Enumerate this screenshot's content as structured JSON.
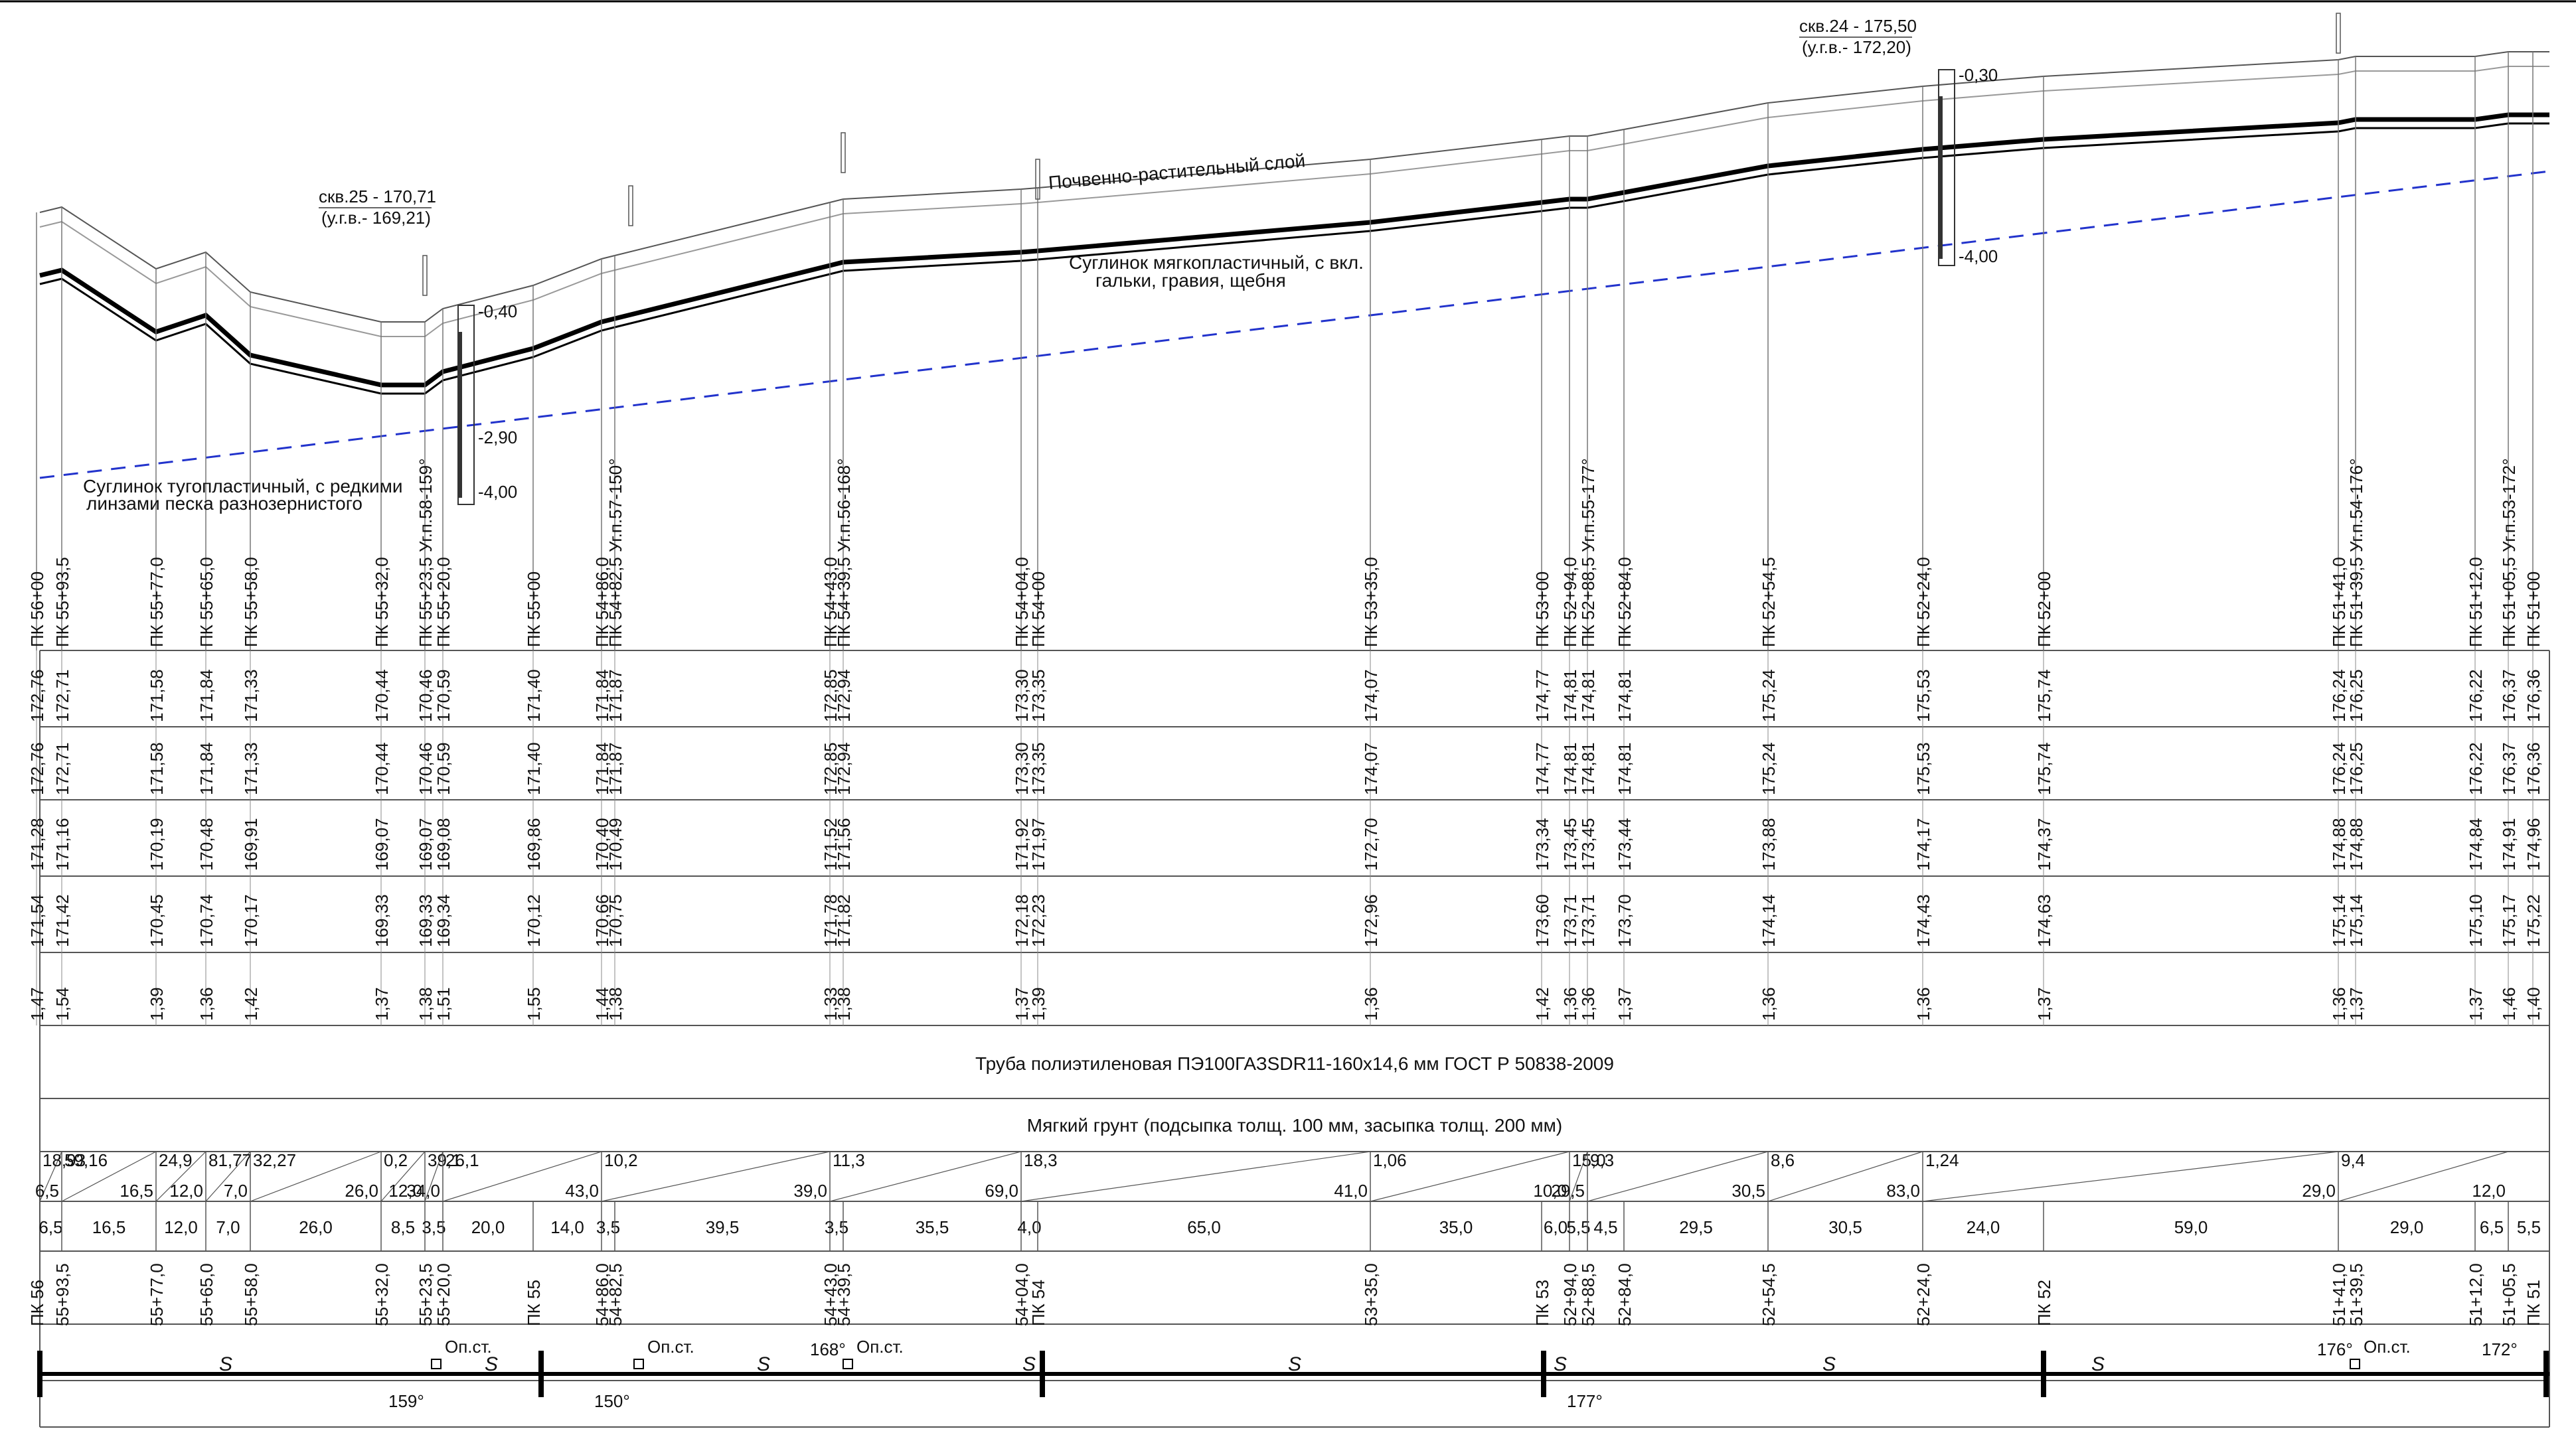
{
  "profile": {
    "soil_labels": {
      "topsoil": "Почвенно-растительный слой",
      "loam_soft": [
        "Суглинок мягкопластичный, с вкл.",
        "гальки,  гравия,  щебня"
      ],
      "loam_hard": [
        "Суглинок тугопластичный, с редкими",
        "линзами песка разнозернистого"
      ]
    },
    "boreholes": [
      {
        "title": "скв.25 - 170,71",
        "gw": "(у.г.в.- 169,21)",
        "depths": [
          "-0,40",
          "-2,90",
          "-4,00"
        ]
      },
      {
        "title": "скв.24 - 175,50",
        "gw": "(у.г.в.- 172,20)",
        "depths": [
          "-0,30",
          "-4,00"
        ]
      }
    ],
    "pickets": [
      {
        "name": "ПК 56+00",
        "g1": "172,76",
        "g2": "172,76",
        "p": "171,28",
        "b": "171,54",
        "d": "1,47",
        "km": "ПК 56"
      },
      {
        "name": "ПК 55+93,5",
        "g1": "172,71",
        "g2": "172,71",
        "p": "171,16",
        "b": "171,42",
        "d": "1,54",
        "km": "55+93,5"
      },
      {
        "name": "ПК 55+77,0",
        "g1": "171,58",
        "g2": "171,58",
        "p": "170,19",
        "b": "170,45",
        "d": "1,39",
        "km": "55+77,0"
      },
      {
        "name": "ПК 55+65,0",
        "g1": "171,84",
        "g2": "171,84",
        "p": "170,48",
        "b": "170,74",
        "d": "1,36",
        "km": "55+65,0"
      },
      {
        "name": "ПК 55+58,0",
        "g1": "171,33",
        "g2": "171,33",
        "p": "169,91",
        "b": "170,17",
        "d": "1,42",
        "km": "55+58,0"
      },
      {
        "name": "ПК 55+32,0",
        "g1": "170,44",
        "g2": "170,44",
        "p": "169,07",
        "b": "169,33",
        "d": "1,37",
        "km": "55+32,0"
      },
      {
        "name": "ПК 55+23,5  Уг.п.58-159°",
        "g1": "170,46",
        "g2": "170,46",
        "p": "169,07",
        "b": "169,33",
        "d": "1,38",
        "km": "55+23,5"
      },
      {
        "name": "ПК 55+20,0",
        "g1": "170,59",
        "g2": "170,59",
        "p": "169,08",
        "b": "169,34",
        "d": "1,51",
        "km": "55+20,0"
      },
      {
        "name": "ПК 55+00",
        "g1": "171,40",
        "g2": "171,40",
        "p": "169,86",
        "b": "170,12",
        "d": "1,55",
        "km": "ПК 55"
      },
      {
        "name": "ПК 54+86,0",
        "g1": "171,84",
        "g2": "171,84",
        "p": "170,40",
        "b": "170,66",
        "d": "1,44",
        "km": "54+86,0"
      },
      {
        "name": "ПК 54+82,5  Уг.п.57-150°",
        "g1": "171,87",
        "g2": "171,87",
        "p": "170,49",
        "b": "170,75",
        "d": "1,38",
        "km": "54+82,5"
      },
      {
        "name": "ПК 54+43,0",
        "g1": "172,85",
        "g2": "172,85",
        "p": "171,52",
        "b": "171,78",
        "d": "1,33",
        "km": "54+43,0"
      },
      {
        "name": "ПК 54+39,5  Уг.п.56-168°",
        "g1": "172,94",
        "g2": "172,94",
        "p": "171,56",
        "b": "171,82",
        "d": "1,38",
        "km": "54+39,5"
      },
      {
        "name": "ПК 54+04,0",
        "g1": "173,30",
        "g2": "173,30",
        "p": "171,92",
        "b": "172,18",
        "d": "1,37",
        "km": "54+04,0"
      },
      {
        "name": "ПК 54+00",
        "g1": "173,35",
        "g2": "173,35",
        "p": "171,97",
        "b": "172,23",
        "d": "1,39",
        "km": "ПК 54"
      },
      {
        "name": "ПК 53+35,0",
        "g1": "174,07",
        "g2": "174,07",
        "p": "172,70",
        "b": "172,96",
        "d": "1,36",
        "km": "53+35,0"
      },
      {
        "name": "ПК 53+00",
        "g1": "174,77",
        "g2": "174,77",
        "p": "173,34",
        "b": "173,60",
        "d": "1,42",
        "km": "ПК 53"
      },
      {
        "name": "ПК 52+94,0",
        "g1": "174,81",
        "g2": "174,81",
        "p": "173,45",
        "b": "173,71",
        "d": "1,36",
        "km": "52+94,0"
      },
      {
        "name": "ПК 52+88,5  Уг.п.55-177°",
        "g1": "174,81",
        "g2": "174,81",
        "p": "173,45",
        "b": "173,71",
        "d": "1,36",
        "km": "52+88,5"
      },
      {
        "name": "ПК 52+84,0",
        "g1": "174,81",
        "g2": "174,81",
        "p": "173,44",
        "b": "173,70",
        "d": "1,37",
        "km": "52+84,0"
      },
      {
        "name": "ПК 52+54,5",
        "g1": "175,24",
        "g2": "175,24",
        "p": "173,88",
        "b": "174,14",
        "d": "1,36",
        "km": "52+54,5"
      },
      {
        "name": "ПК 52+24,0",
        "g1": "175,53",
        "g2": "175,53",
        "p": "174,17",
        "b": "174,43",
        "d": "1,36",
        "km": "52+24,0"
      },
      {
        "name": "ПК 52+00",
        "g1": "175,74",
        "g2": "175,74",
        "p": "174,37",
        "b": "174,63",
        "d": "1,37",
        "km": "ПК 52"
      },
      {
        "name": "ПК 51+41,0",
        "g1": "176,24",
        "g2": "176,24",
        "p": "174,88",
        "b": "175,14",
        "d": "1,36",
        "km": "51+41,0"
      },
      {
        "name": "ПК 51+39,5  Уг.п.54-176°",
        "g1": "176,25",
        "g2": "176,25",
        "p": "174,88",
        "b": "175,14",
        "d": "1,37",
        "km": "51+39,5"
      },
      {
        "name": "ПК 51+12,0",
        "g1": "176,22",
        "g2": "176,22",
        "p": "174,84",
        "b": "175,10",
        "d": "1,37",
        "km": "51+12,0"
      },
      {
        "name": "ПК 51+05,5  Уг.п.53-172°",
        "g1": "176,37",
        "g2": "176,37",
        "p": "174,91",
        "b": "175,17",
        "d": "1,46",
        "km": "51+05,5"
      },
      {
        "name": "ПК 51+00",
        "g1": "176,36",
        "g2": "176,36",
        "p": "174,96",
        "b": "175,22",
        "d": "1,40",
        "km": "ПК 51"
      }
    ],
    "pipe_text": "Труба полиэтиленовая ПЭ100ГАЗSDR11-160х14,6 мм   ГОСТ Р 50838-2009",
    "ground_text": "Мягкий грунт (подсыпка толщ. 100 мм, засыпка толщ. 200 мм)",
    "slope_cells": [
      {
        "top": "18,93",
        "bot": "6,5"
      },
      {
        "top": "59,16",
        "bot": "16,5"
      },
      {
        "top": "24,9",
        "bot": "12,0"
      },
      {
        "top": "81,77",
        "bot": "7,0"
      },
      {
        "top": "32,27",
        "bot": "26,0"
      },
      {
        "top": "0,2",
        "bot": "12,0"
      },
      {
        "top": "39,1",
        "bot": "34,0"
      },
      {
        "top": "26,1",
        "bot": "43,0"
      },
      {
        "top": "10,2",
        "bot": "39,0"
      },
      {
        "top": "11,3",
        "bot": "69,0"
      },
      {
        "top": "18,3",
        "bot": "41,0"
      },
      {
        "top": "1,06",
        "bot": "10,0"
      },
      {
        "top": "15,0",
        "bot": "29,5"
      },
      {
        "top": "9,3",
        "bot": "30,5"
      },
      {
        "top": "8,6",
        "bot": "83,0"
      },
      {
        "top": "1,24",
        "bot": "29,0"
      },
      {
        "top": "9,4",
        "bot": "12,0"
      }
    ],
    "distances": [
      "6,5",
      "16,5",
      "12,0",
      "7,0",
      "26,0",
      "8,5",
      "3,5",
      "20,0",
      "14,0",
      "3,5",
      "39,5",
      "3,5",
      "35,5",
      "4,0",
      "65,0",
      "35,0",
      "6,0",
      "5,5",
      "4,5",
      "29,5",
      "30,5",
      "24,0",
      "59,0",
      "29,0",
      "6,5",
      "5,5"
    ],
    "plan": {
      "support_label": "Оп.ст.",
      "sag_mark": "S",
      "angles": [
        "159°",
        "150°",
        "168°",
        "177°",
        "176°",
        "172°"
      ]
    }
  }
}
